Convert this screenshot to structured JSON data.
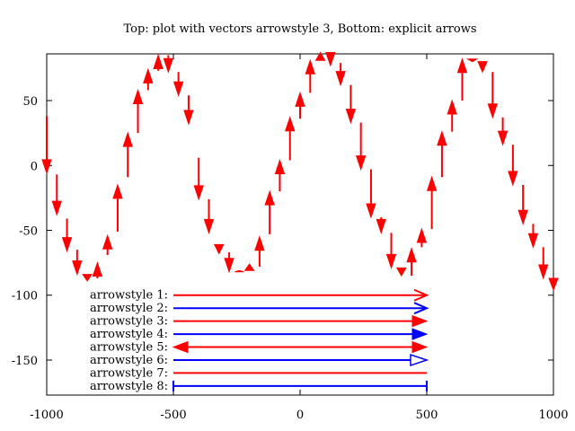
{
  "chart_data": {
    "type": "vectors",
    "title": "Top: plot with vectors arrowstyle 3, Bottom: explicit arrows",
    "xlabel": "",
    "ylabel": "",
    "xlim": [
      -1000,
      1000
    ],
    "ylim": [
      -177,
      86
    ],
    "grid": false,
    "xticks": [
      -1000,
      -500,
      0,
      500,
      1000
    ],
    "yticks": [
      50,
      0,
      -50,
      -100,
      -150
    ],
    "xtick_labels": [
      "-1000",
      "-500",
      "0",
      "500",
      "1000"
    ],
    "ytick_labels": [
      "50",
      "0",
      "-50",
      "-100",
      "-150"
    ],
    "vectors": {
      "color": "#ff0000",
      "arrowstyle": 3,
      "x_start": -1000,
      "x_step": 40,
      "dx": 0,
      "amplitude": 84,
      "period": 600,
      "x": [
        -1000,
        -960,
        -920,
        -880,
        -840,
        -800,
        -760,
        -720,
        -680,
        -640,
        -600,
        -560,
        -520,
        -480,
        -440,
        -400,
        -360,
        -320,
        -280,
        -240,
        -200,
        -160,
        -120,
        -80,
        -40,
        0,
        40,
        80,
        120,
        160,
        200,
        240,
        280,
        320,
        360,
        400,
        440,
        480,
        520,
        560,
        600,
        640,
        680,
        720,
        760,
        800,
        840,
        880,
        920,
        960,
        1000
      ],
      "y": [
        38,
        -7,
        -41,
        -65,
        -84,
        -87,
        -69,
        -51,
        -9,
        25,
        58,
        73,
        85,
        72,
        54,
        6,
        -26,
        -61,
        -67,
        -82,
        -81,
        -78,
        -53,
        -20,
        4,
        36,
        56,
        81,
        87,
        79,
        62,
        33,
        -3,
        -40,
        -52,
        -79,
        -85,
        -63,
        -49,
        -9,
        26,
        50,
        82,
        80,
        72,
        37,
        16,
        -15,
        -45,
        -63,
        -87
      ],
      "dy": [
        -44,
        -31,
        -25,
        -19,
        -5,
        12,
        15,
        36,
        34,
        33,
        16,
        12,
        -13,
        -18,
        -22,
        -32,
        -26,
        -7,
        -15,
        1,
        5,
        23,
        33,
        24,
        33,
        20,
        25,
        6,
        -10,
        -17,
        -29,
        -36,
        -37,
        -12,
        -27,
        -6,
        21,
        14,
        40,
        35,
        24,
        32,
        -2,
        -8,
        -35,
        -21,
        -31,
        -30,
        -18,
        -24,
        -9
      ]
    },
    "explicit_arrows": {
      "x_start": -500,
      "x_end": 500,
      "label_x": -500,
      "items": [
        {
          "label": "arrowstyle 1:",
          "y": -100,
          "color": "#ff0000",
          "head": "open-end"
        },
        {
          "label": "arrowstyle 2:",
          "y": -110,
          "color": "#0000ff",
          "head": "open-end"
        },
        {
          "label": "arrowstyle 3:",
          "y": -120,
          "color": "#ff0000",
          "head": "filled-end"
        },
        {
          "label": "arrowstyle 4:",
          "y": -130,
          "color": "#0000ff",
          "head": "filled-end"
        },
        {
          "label": "arrowstyle 5:",
          "y": -140,
          "color": "#ff0000",
          "head": "filled-both"
        },
        {
          "label": "arrowstyle 6:",
          "y": -150,
          "color": "#0000ff",
          "head": "empty-end"
        },
        {
          "label": "arrowstyle 7:",
          "y": -160,
          "color": "#ff0000",
          "head": "none"
        },
        {
          "label": "arrowstyle 8:",
          "y": -170,
          "color": "#0000ff",
          "head": "bar-both"
        }
      ]
    }
  }
}
